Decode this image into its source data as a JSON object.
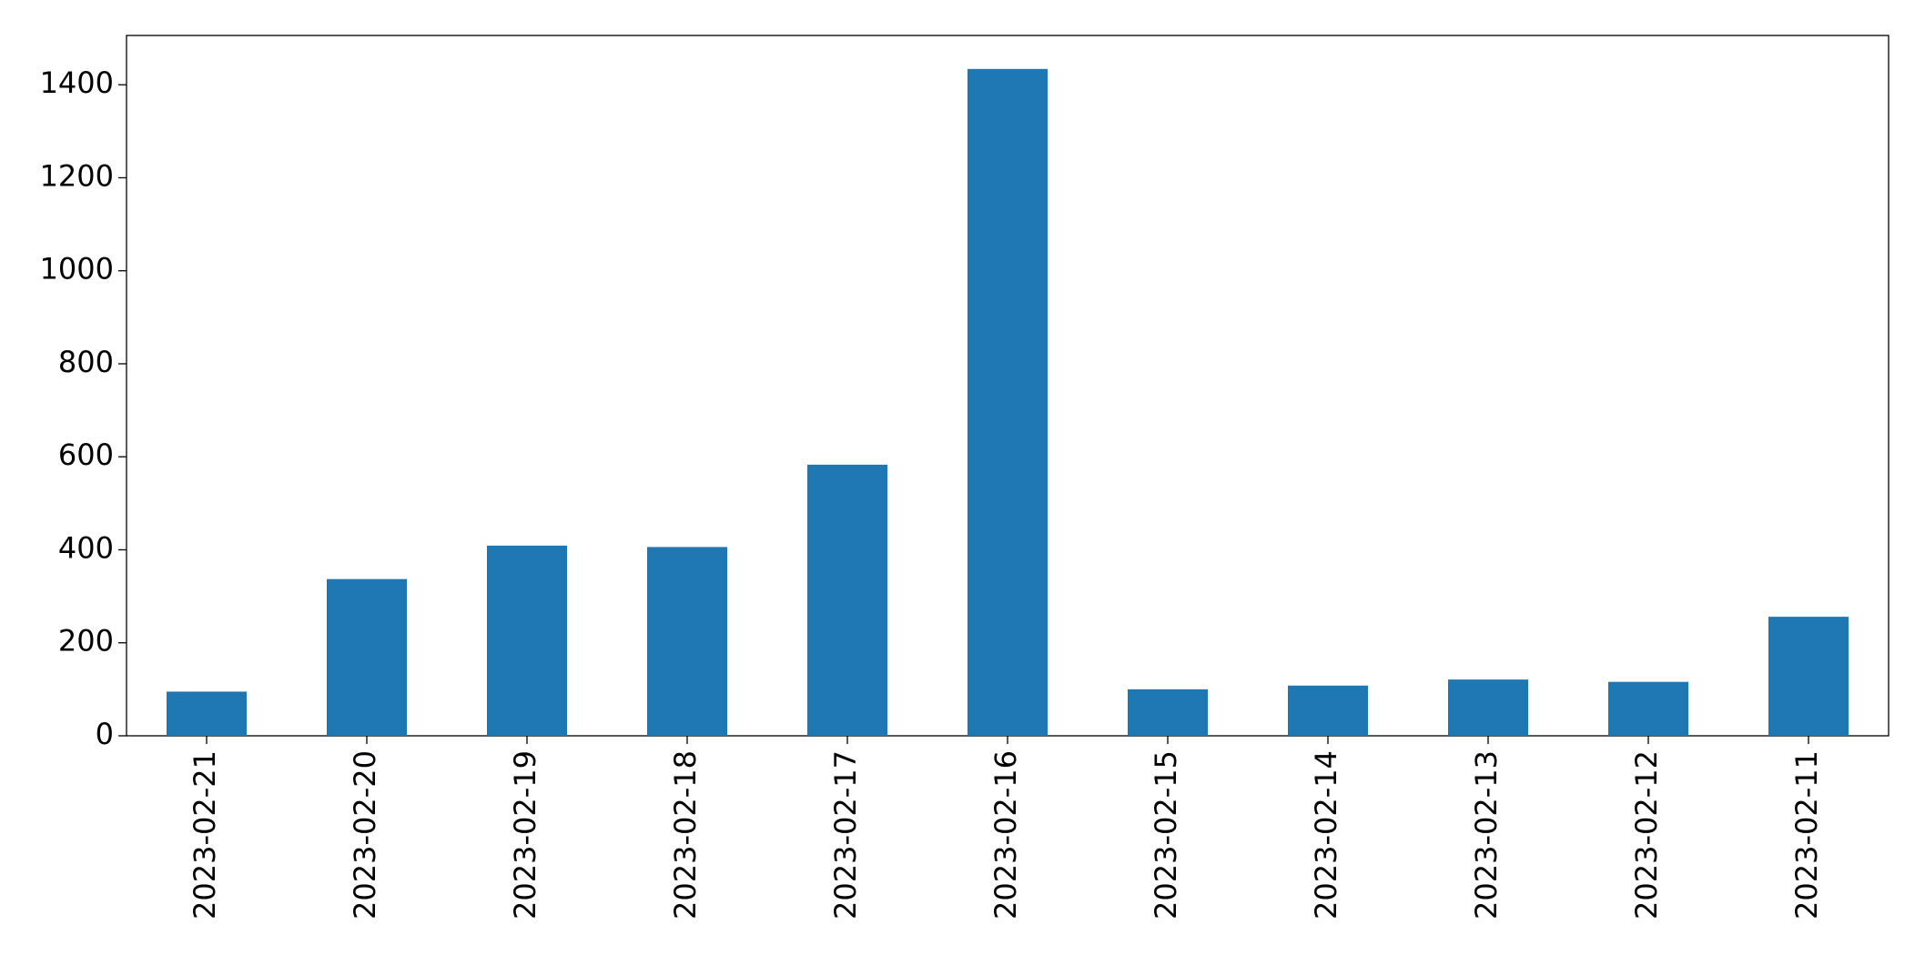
{
  "chart_data": {
    "type": "bar",
    "categories": [
      "2023-02-21",
      "2023-02-20",
      "2023-02-19",
      "2023-02-18",
      "2023-02-17",
      "2023-02-16",
      "2023-02-15",
      "2023-02-14",
      "2023-02-13",
      "2023-02-12",
      "2023-02-11"
    ],
    "values": [
      95,
      337,
      409,
      406,
      583,
      1434,
      100,
      108,
      121,
      116,
      256
    ],
    "color": "#1f77b4",
    "ylim": [
      0,
      1506
    ],
    "yticks": [
      0,
      200,
      400,
      600,
      800,
      1000,
      1200,
      1400
    ],
    "grid": false
  }
}
